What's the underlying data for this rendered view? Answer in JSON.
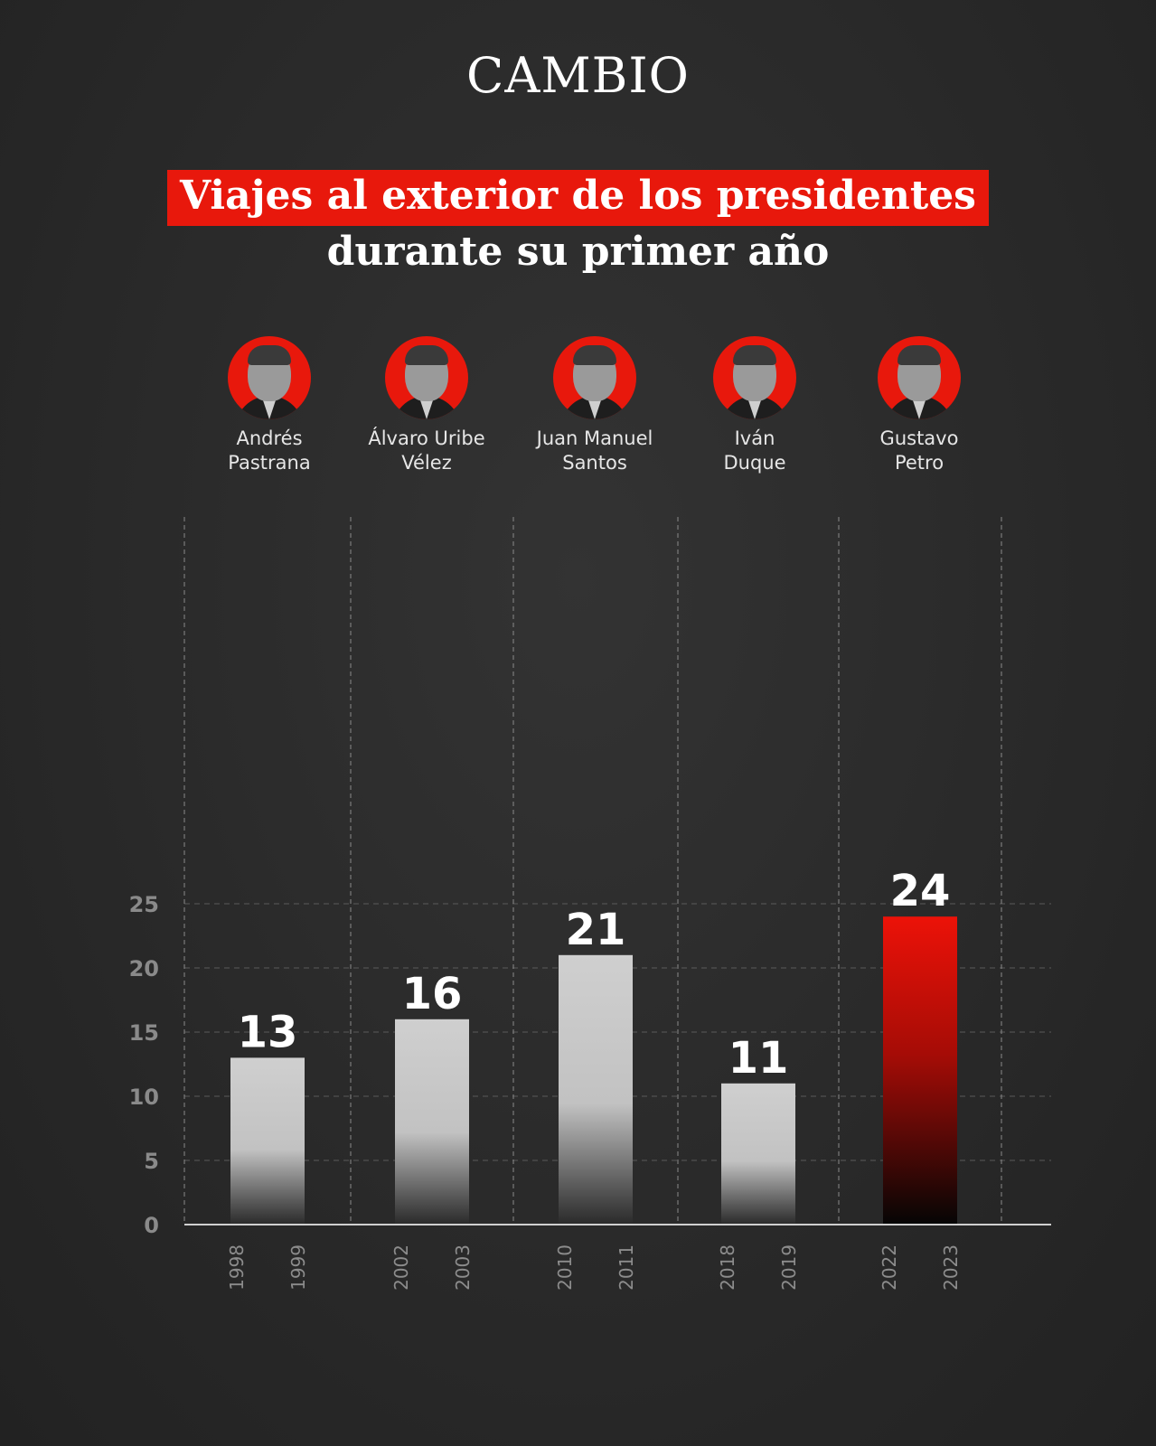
{
  "brand": "CAMBIO",
  "title_line1": "Viajes al exterior de los presidentes",
  "title_line2": "durante su primer año",
  "accent_color": "#e8180c",
  "presidents": [
    {
      "name": "Andrés\nPastrana",
      "icon": "portrait-icon"
    },
    {
      "name": "Álvaro Uribe\nVélez",
      "icon": "portrait-icon"
    },
    {
      "name": "Juan Manuel\nSantos",
      "icon": "portrait-icon"
    },
    {
      "name": "Iván\nDuque",
      "icon": "portrait-icon"
    },
    {
      "name": "Gustavo\nPetro",
      "icon": "portrait-icon"
    }
  ],
  "chart_data": {
    "type": "bar",
    "title": "Viajes al exterior de los presidentes durante su primer año",
    "categories": [
      "Andrés Pastrana",
      "Álvaro Uribe Vélez",
      "Juan Manuel Santos",
      "Iván Duque",
      "Gustavo Petro"
    ],
    "periods": [
      [
        "1998",
        "1999"
      ],
      [
        "2002",
        "2003"
      ],
      [
        "2010",
        "2011"
      ],
      [
        "2018",
        "2019"
      ],
      [
        "2022",
        "2023"
      ]
    ],
    "values": [
      13,
      16,
      21,
      11,
      24
    ],
    "highlight_index": 4,
    "bar_colors": [
      "#cccccc",
      "#cccccc",
      "#cccccc",
      "#cccccc",
      "#e8180c"
    ],
    "ylim": [
      0,
      27
    ],
    "yticks": [
      0,
      5,
      10,
      15,
      20,
      25
    ],
    "xlabel": "",
    "ylabel": "",
    "grid": true,
    "legend": "none"
  }
}
